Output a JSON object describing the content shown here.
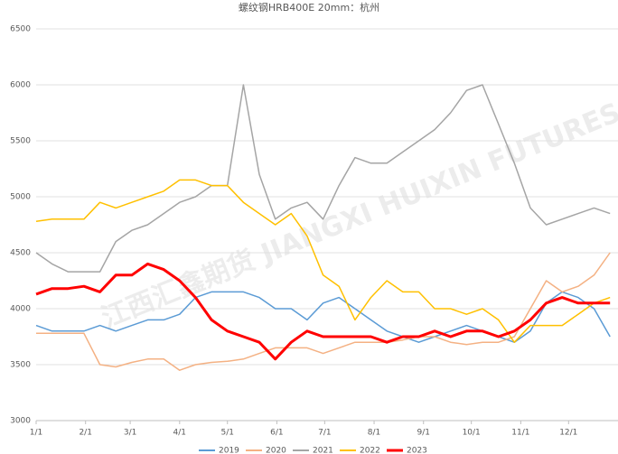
{
  "chart_data": {
    "type": "line",
    "title": "螺纹钢HRB400E 20mm：杭州",
    "watermark": "江西汇鑫期货 JIANGXI HUIXIN FUTURES",
    "x": [
      1,
      11,
      21,
      31,
      41,
      51,
      61,
      71,
      81,
      91,
      101,
      111,
      121,
      131,
      141,
      151,
      161,
      171,
      181,
      191,
      201,
      211,
      221,
      231,
      241,
      251,
      261,
      271,
      281,
      291,
      301,
      311,
      321,
      331,
      341,
      351,
      361
    ],
    "xlim": [
      1,
      366
    ],
    "xticks": [
      {
        "value": 1,
        "label": "1/1"
      },
      {
        "value": 32,
        "label": "2/1"
      },
      {
        "value": 60,
        "label": "3/1"
      },
      {
        "value": 91,
        "label": "4/1"
      },
      {
        "value": 121,
        "label": "5/1"
      },
      {
        "value": 152,
        "label": "6/1"
      },
      {
        "value": 182,
        "label": "7/1"
      },
      {
        "value": 213,
        "label": "8/1"
      },
      {
        "value": 244,
        "label": "9/1"
      },
      {
        "value": 274,
        "label": "10/1"
      },
      {
        "value": 305,
        "label": "11/1"
      },
      {
        "value": 335,
        "label": "12/1"
      }
    ],
    "ylim": [
      3000,
      6500
    ],
    "yticks": [
      3000,
      3500,
      4000,
      4500,
      5000,
      5500,
      6000,
      6500
    ],
    "grid": true,
    "series": [
      {
        "name": "2019",
        "color": "#5b9bd5",
        "values": [
          3850,
          3800,
          3800,
          3800,
          3850,
          3800,
          3850,
          3900,
          3900,
          3950,
          4100,
          4150,
          4150,
          4150,
          4100,
          4000,
          4000,
          3900,
          4050,
          4100,
          4000,
          3900,
          3800,
          3750,
          3700,
          3750,
          3800,
          3850,
          3800,
          3750,
          3700,
          3800,
          4050,
          4150,
          4100,
          4000,
          3750
        ]
      },
      {
        "name": "2020",
        "color": "#f4b183",
        "values": [
          3780,
          3780,
          3780,
          3780,
          3500,
          3480,
          3520,
          3550,
          3550,
          3450,
          3500,
          3520,
          3530,
          3550,
          3600,
          3650,
          3650,
          3650,
          3600,
          3650,
          3700,
          3700,
          3700,
          3720,
          3750,
          3750,
          3700,
          3680,
          3700,
          3700,
          3750,
          4000,
          4250,
          4150,
          4200,
          4300,
          4500
        ]
      },
      {
        "name": "2021",
        "color": "#a5a5a5",
        "values": [
          4500,
          4400,
          4330,
          4330,
          4330,
          4600,
          4700,
          4750,
          4850,
          4950,
          5000,
          5100,
          5100,
          6000,
          5200,
          4800,
          4900,
          4950,
          4800,
          5100,
          5350,
          5300,
          5300,
          5400,
          5500,
          5600,
          5750,
          5950,
          6000,
          5650,
          5300,
          4900,
          4750,
          4800,
          4850,
          4900,
          4850
        ]
      },
      {
        "name": "2022",
        "color": "#ffc000",
        "values": [
          4780,
          4800,
          4800,
          4800,
          4950,
          4900,
          4950,
          5000,
          5050,
          5150,
          5150,
          5100,
          5100,
          4950,
          4850,
          4750,
          4850,
          4650,
          4300,
          4200,
          3900,
          4100,
          4250,
          4150,
          4150,
          4000,
          4000,
          3950,
          4000,
          3900,
          3700,
          3850,
          3850,
          3850,
          3950,
          4050,
          4100
        ]
      },
      {
        "name": "2023",
        "color": "#ff0000",
        "width": 3,
        "values": [
          4130,
          4180,
          4180,
          4200,
          4150,
          4300,
          4300,
          4400,
          4350,
          4250,
          4100,
          3900,
          3800,
          3750,
          3700,
          3550,
          3700,
          3800,
          3750,
          3750,
          3750,
          3750,
          3700,
          3750,
          3750,
          3800,
          3750,
          3800,
          3800,
          3750,
          3800,
          3900,
          4050,
          4100,
          4050,
          4050,
          4050
        ]
      }
    ]
  }
}
